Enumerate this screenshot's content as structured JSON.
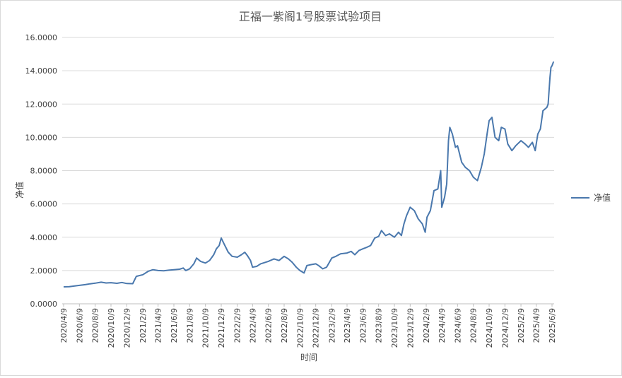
{
  "chart_data": {
    "type": "line",
    "title": "正福一紫阁1号股票试验项目",
    "xlabel": "时间",
    "ylabel": "净值",
    "ylim": [
      0,
      16
    ],
    "yticks": [
      "0.0000",
      "2.0000",
      "4.0000",
      "6.0000",
      "8.0000",
      "10.0000",
      "12.0000",
      "14.0000",
      "16.0000"
    ],
    "xticks": [
      "2020/4/9",
      "2020/6/9",
      "2020/8/9",
      "2020/10/9",
      "2020/12/9",
      "2021/2/9",
      "2021/4/9",
      "2021/6/9",
      "2021/8/9",
      "2021/10/9",
      "2021/12/9",
      "2022/2/9",
      "2022/4/9",
      "2022/6/9",
      "2022/8/9",
      "2022/10/9",
      "2022/12/9",
      "2023/2/9",
      "2023/4/9",
      "2023/6/9",
      "2023/8/9",
      "2023/10/9",
      "2023/12/9",
      "2024/2/9",
      "2024/4/9",
      "2024/6/9",
      "2024/8/9",
      "2024/10/9",
      "2024/12/9",
      "2025/2/9",
      "2025/4/9",
      "2025/6/9"
    ],
    "grid": true,
    "legend_position": "right",
    "series": [
      {
        "name": "净值",
        "color": "#4a78ad",
        "points": [
          [
            "2020-04-09",
            1.02
          ],
          [
            "2020-05-01",
            1.03
          ],
          [
            "2020-06-01",
            1.09
          ],
          [
            "2020-07-01",
            1.15
          ],
          [
            "2020-07-20",
            1.2
          ],
          [
            "2020-08-09",
            1.24
          ],
          [
            "2020-09-01",
            1.3
          ],
          [
            "2020-09-20",
            1.25
          ],
          [
            "2020-10-09",
            1.27
          ],
          [
            "2020-11-01",
            1.23
          ],
          [
            "2020-11-20",
            1.28
          ],
          [
            "2020-12-09",
            1.22
          ],
          [
            "2021-01-01",
            1.21
          ],
          [
            "2021-01-15",
            1.65
          ],
          [
            "2021-02-09",
            1.75
          ],
          [
            "2021-03-01",
            1.95
          ],
          [
            "2021-03-20",
            2.05
          ],
          [
            "2021-04-09",
            2.0
          ],
          [
            "2021-05-01",
            1.98
          ],
          [
            "2021-05-20",
            2.02
          ],
          [
            "2021-06-09",
            2.05
          ],
          [
            "2021-07-01",
            2.08
          ],
          [
            "2021-07-15",
            2.15
          ],
          [
            "2021-07-25",
            2.0
          ],
          [
            "2021-08-09",
            2.1
          ],
          [
            "2021-08-25",
            2.4
          ],
          [
            "2021-09-05",
            2.75
          ],
          [
            "2021-09-20",
            2.55
          ],
          [
            "2021-10-09",
            2.45
          ],
          [
            "2021-10-25",
            2.6
          ],
          [
            "2021-11-10",
            2.95
          ],
          [
            "2021-11-20",
            3.3
          ],
          [
            "2021-12-01",
            3.5
          ],
          [
            "2021-12-09",
            3.95
          ],
          [
            "2021-12-20",
            3.6
          ],
          [
            "2022-01-05",
            3.1
          ],
          [
            "2022-01-20",
            2.85
          ],
          [
            "2022-02-09",
            2.8
          ],
          [
            "2022-02-25",
            2.95
          ],
          [
            "2022-03-10",
            3.1
          ],
          [
            "2022-03-20",
            2.9
          ],
          [
            "2022-04-01",
            2.6
          ],
          [
            "2022-04-09",
            2.2
          ],
          [
            "2022-04-25",
            2.25
          ],
          [
            "2022-05-10",
            2.4
          ],
          [
            "2022-06-09",
            2.55
          ],
          [
            "2022-07-01",
            2.7
          ],
          [
            "2022-07-20",
            2.6
          ],
          [
            "2022-08-09",
            2.85
          ],
          [
            "2022-08-25",
            2.7
          ],
          [
            "2022-09-09",
            2.5
          ],
          [
            "2022-09-25",
            2.2
          ],
          [
            "2022-10-09",
            2.0
          ],
          [
            "2022-10-25",
            1.85
          ],
          [
            "2022-11-05",
            2.3
          ],
          [
            "2022-11-20",
            2.35
          ],
          [
            "2022-12-09",
            2.4
          ],
          [
            "2022-12-20",
            2.3
          ],
          [
            "2023-01-05",
            2.1
          ],
          [
            "2023-01-20",
            2.2
          ],
          [
            "2023-02-09",
            2.75
          ],
          [
            "2023-02-25",
            2.85
          ],
          [
            "2023-03-15",
            3.0
          ],
          [
            "2023-04-09",
            3.05
          ],
          [
            "2023-04-25",
            3.15
          ],
          [
            "2023-05-09",
            2.95
          ],
          [
            "2023-05-25",
            3.2
          ],
          [
            "2023-06-09",
            3.3
          ],
          [
            "2023-06-25",
            3.4
          ],
          [
            "2023-07-09",
            3.5
          ],
          [
            "2023-07-25",
            3.95
          ],
          [
            "2023-08-09",
            4.05
          ],
          [
            "2023-08-20",
            4.4
          ],
          [
            "2023-09-05",
            4.1
          ],
          [
            "2023-09-20",
            4.2
          ],
          [
            "2023-10-09",
            4.0
          ],
          [
            "2023-10-25",
            4.3
          ],
          [
            "2023-11-05",
            4.1
          ],
          [
            "2023-11-15",
            4.8
          ],
          [
            "2023-11-25",
            5.3
          ],
          [
            "2023-12-09",
            5.8
          ],
          [
            "2023-12-25",
            5.6
          ],
          [
            "2024-01-09",
            5.1
          ],
          [
            "2024-01-25",
            4.8
          ],
          [
            "2024-02-05",
            4.3
          ],
          [
            "2024-02-12",
            5.2
          ],
          [
            "2024-02-25",
            5.6
          ],
          [
            "2024-03-10",
            6.8
          ],
          [
            "2024-03-25",
            6.9
          ],
          [
            "2024-04-05",
            8.0
          ],
          [
            "2024-04-09",
            5.8
          ],
          [
            "2024-04-20",
            6.4
          ],
          [
            "2024-04-28",
            7.2
          ],
          [
            "2024-05-05",
            9.8
          ],
          [
            "2024-05-10",
            10.6
          ],
          [
            "2024-05-20",
            10.2
          ],
          [
            "2024-06-01",
            9.4
          ],
          [
            "2024-06-09",
            9.5
          ],
          [
            "2024-06-25",
            8.5
          ],
          [
            "2024-07-09",
            8.2
          ],
          [
            "2024-07-25",
            8.0
          ],
          [
            "2024-08-09",
            7.6
          ],
          [
            "2024-08-25",
            7.4
          ],
          [
            "2024-09-09",
            8.2
          ],
          [
            "2024-09-20",
            9.0
          ],
          [
            "2024-10-01",
            10.2
          ],
          [
            "2024-10-09",
            11.0
          ],
          [
            "2024-10-20",
            11.2
          ],
          [
            "2024-11-01",
            10.0
          ],
          [
            "2024-11-15",
            9.8
          ],
          [
            "2024-11-25",
            10.6
          ],
          [
            "2024-12-09",
            10.5
          ],
          [
            "2024-12-20",
            9.6
          ],
          [
            "2025-01-05",
            9.2
          ],
          [
            "2025-01-20",
            9.5
          ],
          [
            "2025-02-09",
            9.8
          ],
          [
            "2025-02-25",
            9.6
          ],
          [
            "2025-03-10",
            9.4
          ],
          [
            "2025-03-25",
            9.7
          ],
          [
            "2025-04-05",
            9.2
          ],
          [
            "2025-04-15",
            10.2
          ],
          [
            "2025-04-25",
            10.5
          ],
          [
            "2025-05-05",
            11.6
          ],
          [
            "2025-05-20",
            11.8
          ],
          [
            "2025-05-25",
            12.0
          ],
          [
            "2025-06-01",
            13.6
          ],
          [
            "2025-06-05",
            14.2
          ],
          [
            "2025-06-09",
            14.3
          ],
          [
            "2025-06-15",
            14.55
          ]
        ]
      }
    ]
  }
}
